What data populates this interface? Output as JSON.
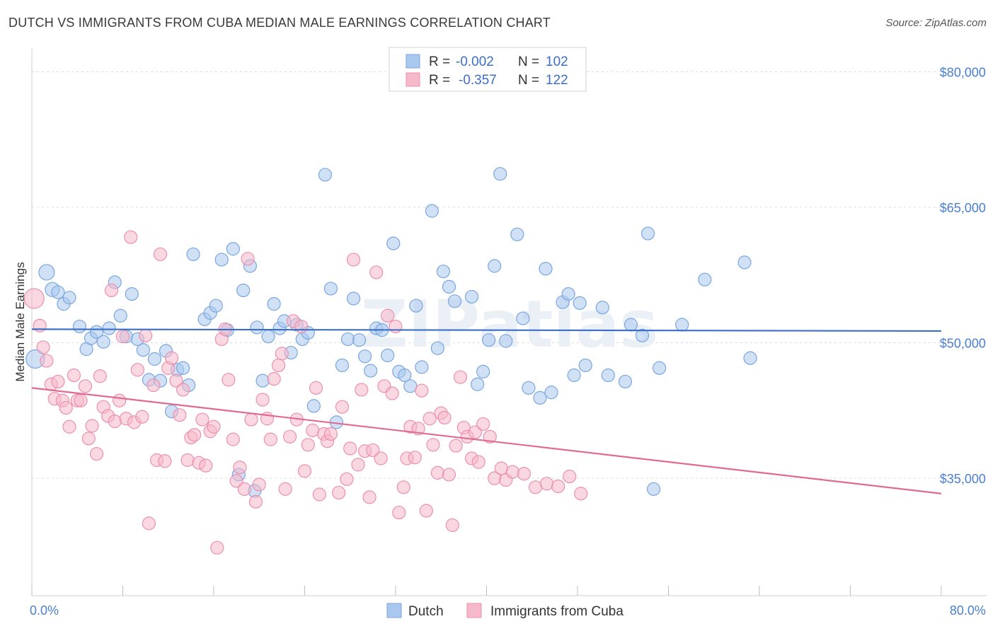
{
  "header": {
    "title": "DUTCH VS IMMIGRANTS FROM CUBA MEDIAN MALE EARNINGS CORRELATION CHART",
    "source": "Source: ZipAtlas.com"
  },
  "watermark": "ZIPatlas",
  "chart_data": {
    "type": "scatter",
    "ylabel": "Median Male Earnings",
    "xlim": [
      0,
      80
    ],
    "ylim": [
      22000,
      82000
    ],
    "x_tick_labels": [
      "0.0%",
      "80.0%"
    ],
    "y_ticks": [
      {
        "value": 80000,
        "label": "$80,000"
      },
      {
        "value": 65000,
        "label": "$65,000"
      },
      {
        "value": 50000,
        "label": "$50,000"
      },
      {
        "value": 35000,
        "label": "$35,000"
      }
    ],
    "grid": "horizontal dashed",
    "legend_position": "top-center",
    "stats": [
      {
        "r_label": "R =",
        "r": "-0.002",
        "n_label": "N =",
        "n": "102"
      },
      {
        "r_label": "R =",
        "r": "-0.357",
        "n_label": "N =",
        "n": "122"
      }
    ],
    "series": [
      {
        "name": "Dutch",
        "color": "#aac8ee",
        "stroke": "#7aa6e0",
        "line_color": "#3b6fc7",
        "trend": [
          [
            0,
            51500
          ],
          [
            80,
            51300
          ]
        ],
        "points": [
          [
            0.3,
            48200,
            13
          ],
          [
            1.3,
            57800,
            11
          ],
          [
            1.8,
            55900,
            10
          ],
          [
            2.3,
            55600,
            9
          ],
          [
            2.8,
            54300,
            9
          ],
          [
            3.3,
            55000,
            9
          ],
          [
            4.2,
            51800,
            9
          ],
          [
            4.8,
            49300,
            9
          ],
          [
            5.2,
            50500,
            9
          ],
          [
            5.7,
            51200,
            9
          ],
          [
            6.3,
            50100,
            9
          ],
          [
            6.8,
            51600,
            9
          ],
          [
            7.3,
            56700,
            9
          ],
          [
            7.8,
            53000,
            9
          ],
          [
            8.3,
            50700,
            9
          ],
          [
            8.8,
            55400,
            9
          ],
          [
            9.3,
            50400,
            9
          ],
          [
            9.8,
            49200,
            9
          ],
          [
            10.3,
            45900,
            9
          ],
          [
            10.8,
            48200,
            9
          ],
          [
            11.3,
            45800,
            9
          ],
          [
            11.8,
            49100,
            9
          ],
          [
            12.3,
            42400,
            9
          ],
          [
            12.8,
            47000,
            9
          ],
          [
            13.3,
            47200,
            9
          ],
          [
            13.8,
            45300,
            9
          ],
          [
            14.2,
            59800,
            9
          ],
          [
            15.2,
            52600,
            9
          ],
          [
            15.7,
            53300,
            9
          ],
          [
            16.2,
            54100,
            9
          ],
          [
            16.7,
            59200,
            9
          ],
          [
            17.2,
            51400,
            9
          ],
          [
            17.7,
            60400,
            9
          ],
          [
            18.2,
            35400,
            9
          ],
          [
            18.6,
            55800,
            9
          ],
          [
            19.2,
            58500,
            9
          ],
          [
            19.8,
            51700,
            9
          ],
          [
            20.3,
            45800,
            9
          ],
          [
            20.8,
            50700,
            9
          ],
          [
            21.3,
            54300,
            9
          ],
          [
            21.8,
            51600,
            9
          ],
          [
            22.2,
            52400,
            9
          ],
          [
            22.8,
            48900,
            9
          ],
          [
            23.3,
            52000,
            9
          ],
          [
            23.8,
            50400,
            9
          ],
          [
            24.3,
            51100,
            9
          ],
          [
            24.8,
            43000,
            9
          ],
          [
            25.8,
            68600,
            9
          ],
          [
            26.3,
            56000,
            9
          ],
          [
            26.8,
            41200,
            9
          ],
          [
            27.3,
            47500,
            9
          ],
          [
            27.8,
            50400,
            9
          ],
          [
            28.3,
            54900,
            9
          ],
          [
            28.8,
            50300,
            9
          ],
          [
            29.3,
            48500,
            9
          ],
          [
            29.8,
            46900,
            9
          ],
          [
            30.3,
            51600,
            9
          ],
          [
            30.8,
            51400,
            9
          ],
          [
            31.3,
            48600,
            9
          ],
          [
            31.8,
            61000,
            9
          ],
          [
            32.3,
            46800,
            9
          ],
          [
            32.8,
            46400,
            9
          ],
          [
            33.3,
            45200,
            9
          ],
          [
            33.8,
            54100,
            9
          ],
          [
            34.3,
            47300,
            9
          ],
          [
            35.2,
            64600,
            9
          ],
          [
            35.7,
            49400,
            9
          ],
          [
            36.2,
            57900,
            9
          ],
          [
            36.7,
            56200,
            9
          ],
          [
            37.2,
            54600,
            9
          ],
          [
            38.7,
            55100,
            9
          ],
          [
            39.2,
            45400,
            9
          ],
          [
            39.7,
            46800,
            9
          ],
          [
            40.2,
            50300,
            9
          ],
          [
            40.7,
            58500,
            9
          ],
          [
            41.2,
            68700,
            9
          ],
          [
            41.7,
            50200,
            9
          ],
          [
            42.7,
            62000,
            9
          ],
          [
            43.2,
            52700,
            9
          ],
          [
            43.7,
            45000,
            9
          ],
          [
            44.7,
            43900,
            9
          ],
          [
            45.2,
            58200,
            9
          ],
          [
            45.7,
            44500,
            9
          ],
          [
            46.7,
            54500,
            9
          ],
          [
            47.2,
            55400,
            9
          ],
          [
            47.7,
            46400,
            9
          ],
          [
            48.2,
            54400,
            9
          ],
          [
            48.7,
            47500,
            9
          ],
          [
            50.2,
            53900,
            9
          ],
          [
            50.7,
            46400,
            9
          ],
          [
            52.2,
            45700,
            9
          ],
          [
            52.7,
            52000,
            9
          ],
          [
            53.7,
            50800,
            9
          ],
          [
            54.2,
            62100,
            9
          ],
          [
            54.7,
            33800,
            9
          ],
          [
            55.2,
            47200,
            9
          ],
          [
            57.2,
            52000,
            9
          ],
          [
            59.2,
            57000,
            9
          ],
          [
            62.7,
            58900,
            9
          ],
          [
            63.2,
            48300,
            9
          ],
          [
            19.6,
            33600,
            9
          ]
        ]
      },
      {
        "name": "Immigrants from Cuba",
        "color": "#f6b8cb",
        "stroke": "#ec8fae",
        "line_color": "#e06a94",
        "trend": [
          [
            0,
            45000
          ],
          [
            80,
            33300
          ]
        ],
        "points": [
          [
            0.2,
            54900,
            14
          ],
          [
            0.7,
            51900,
            9
          ],
          [
            1.0,
            49500,
            9
          ],
          [
            1.3,
            48000,
            9
          ],
          [
            1.7,
            45400,
            9
          ],
          [
            2.0,
            43800,
            9
          ],
          [
            2.3,
            45700,
            9
          ],
          [
            2.7,
            43600,
            9
          ],
          [
            3.0,
            42800,
            9
          ],
          [
            3.3,
            40700,
            9
          ],
          [
            3.7,
            46400,
            9
          ],
          [
            4.0,
            43600,
            9
          ],
          [
            4.3,
            43600,
            9
          ],
          [
            4.7,
            45200,
            9
          ],
          [
            5.0,
            39400,
            9
          ],
          [
            5.3,
            40800,
            9
          ],
          [
            5.7,
            37700,
            9
          ],
          [
            6.0,
            46300,
            9
          ],
          [
            6.3,
            42900,
            9
          ],
          [
            6.7,
            41900,
            9
          ],
          [
            7.0,
            55800,
            9
          ],
          [
            7.3,
            41300,
            9
          ],
          [
            7.7,
            43600,
            9
          ],
          [
            8.0,
            50700,
            9
          ],
          [
            8.3,
            41600,
            9
          ],
          [
            8.7,
            61700,
            9
          ],
          [
            9.0,
            41200,
            9
          ],
          [
            9.3,
            47000,
            9
          ],
          [
            9.7,
            41800,
            9
          ],
          [
            10.0,
            50800,
            9
          ],
          [
            10.3,
            30000,
            9
          ],
          [
            10.7,
            45300,
            9
          ],
          [
            11.0,
            37000,
            9
          ],
          [
            11.3,
            59800,
            9
          ],
          [
            11.7,
            36900,
            9
          ],
          [
            12.0,
            47200,
            9
          ],
          [
            12.3,
            48300,
            9
          ],
          [
            12.7,
            45800,
            9
          ],
          [
            13.0,
            42000,
            9
          ],
          [
            13.3,
            44800,
            9
          ],
          [
            13.7,
            37000,
            9
          ],
          [
            14.0,
            39500,
            9
          ],
          [
            14.3,
            39800,
            9
          ],
          [
            14.7,
            36700,
            9
          ],
          [
            15.0,
            41500,
            9
          ],
          [
            15.3,
            36400,
            9
          ],
          [
            15.7,
            40200,
            9
          ],
          [
            16.0,
            40700,
            9
          ],
          [
            16.3,
            27300,
            9
          ],
          [
            16.7,
            50400,
            9
          ],
          [
            17.0,
            51500,
            9
          ],
          [
            17.3,
            45900,
            9
          ],
          [
            17.7,
            39300,
            9
          ],
          [
            18.0,
            34700,
            9
          ],
          [
            18.3,
            36200,
            9
          ],
          [
            18.7,
            33800,
            9
          ],
          [
            19.0,
            59300,
            9
          ],
          [
            19.3,
            41500,
            9
          ],
          [
            19.7,
            32400,
            9
          ],
          [
            20.0,
            34300,
            9
          ],
          [
            20.3,
            43700,
            9
          ],
          [
            20.7,
            41600,
            9
          ],
          [
            21.0,
            39300,
            9
          ],
          [
            21.3,
            46000,
            9
          ],
          [
            21.7,
            47500,
            9
          ],
          [
            22.0,
            48800,
            9
          ],
          [
            22.3,
            33800,
            9
          ],
          [
            22.7,
            39600,
            9
          ],
          [
            23.0,
            52400,
            9
          ],
          [
            23.3,
            41500,
            9
          ],
          [
            23.7,
            51800,
            9
          ],
          [
            24.0,
            35800,
            9
          ],
          [
            24.3,
            38700,
            9
          ],
          [
            24.7,
            40300,
            9
          ],
          [
            25.0,
            45000,
            9
          ],
          [
            25.3,
            33200,
            9
          ],
          [
            25.7,
            39900,
            9
          ],
          [
            26.0,
            39100,
            9
          ],
          [
            26.3,
            39900,
            9
          ],
          [
            27.0,
            33400,
            9
          ],
          [
            27.3,
            42900,
            9
          ],
          [
            27.7,
            34900,
            9
          ],
          [
            28.0,
            38300,
            9
          ],
          [
            28.3,
            59200,
            9
          ],
          [
            28.7,
            36500,
            9
          ],
          [
            29.0,
            44800,
            9
          ],
          [
            29.3,
            38000,
            9
          ],
          [
            29.7,
            32900,
            9
          ],
          [
            30.0,
            38100,
            9
          ],
          [
            30.3,
            57800,
            9
          ],
          [
            30.7,
            37200,
            9
          ],
          [
            31.0,
            45200,
            9
          ],
          [
            31.3,
            53000,
            9
          ],
          [
            31.7,
            44400,
            9
          ],
          [
            32.0,
            51800,
            9
          ],
          [
            32.3,
            31200,
            9
          ],
          [
            32.7,
            34000,
            9
          ],
          [
            33.0,
            37200,
            9
          ],
          [
            33.3,
            40700,
            9
          ],
          [
            33.7,
            37300,
            9
          ],
          [
            34.0,
            40500,
            9
          ],
          [
            34.3,
            44700,
            9
          ],
          [
            34.7,
            31400,
            9
          ],
          [
            35.0,
            41600,
            9
          ],
          [
            35.3,
            38700,
            9
          ],
          [
            35.7,
            35600,
            9
          ],
          [
            36.0,
            42200,
            9
          ],
          [
            36.3,
            41700,
            9
          ],
          [
            36.7,
            35400,
            9
          ],
          [
            37.0,
            29800,
            9
          ],
          [
            37.3,
            38600,
            9
          ],
          [
            37.7,
            46200,
            9
          ],
          [
            38.0,
            40600,
            9
          ],
          [
            38.3,
            39600,
            9
          ],
          [
            38.7,
            37200,
            9
          ],
          [
            39.0,
            40100,
            9
          ],
          [
            39.3,
            36800,
            9
          ],
          [
            39.7,
            41000,
            9
          ],
          [
            40.3,
            39600,
            9
          ],
          [
            40.7,
            35000,
            9
          ],
          [
            41.3,
            36100,
            9
          ],
          [
            41.7,
            34800,
            9
          ],
          [
            42.3,
            35700,
            9
          ],
          [
            43.3,
            35500,
            9
          ],
          [
            44.3,
            34000,
            9
          ],
          [
            45.3,
            34400,
            9
          ],
          [
            46.3,
            34100,
            9
          ],
          [
            47.3,
            35200,
            9
          ],
          [
            48.3,
            33300,
            9
          ]
        ]
      }
    ]
  },
  "bottom_legend": {
    "items": [
      {
        "label": "Dutch"
      },
      {
        "label": "Immigrants from Cuba"
      }
    ]
  }
}
